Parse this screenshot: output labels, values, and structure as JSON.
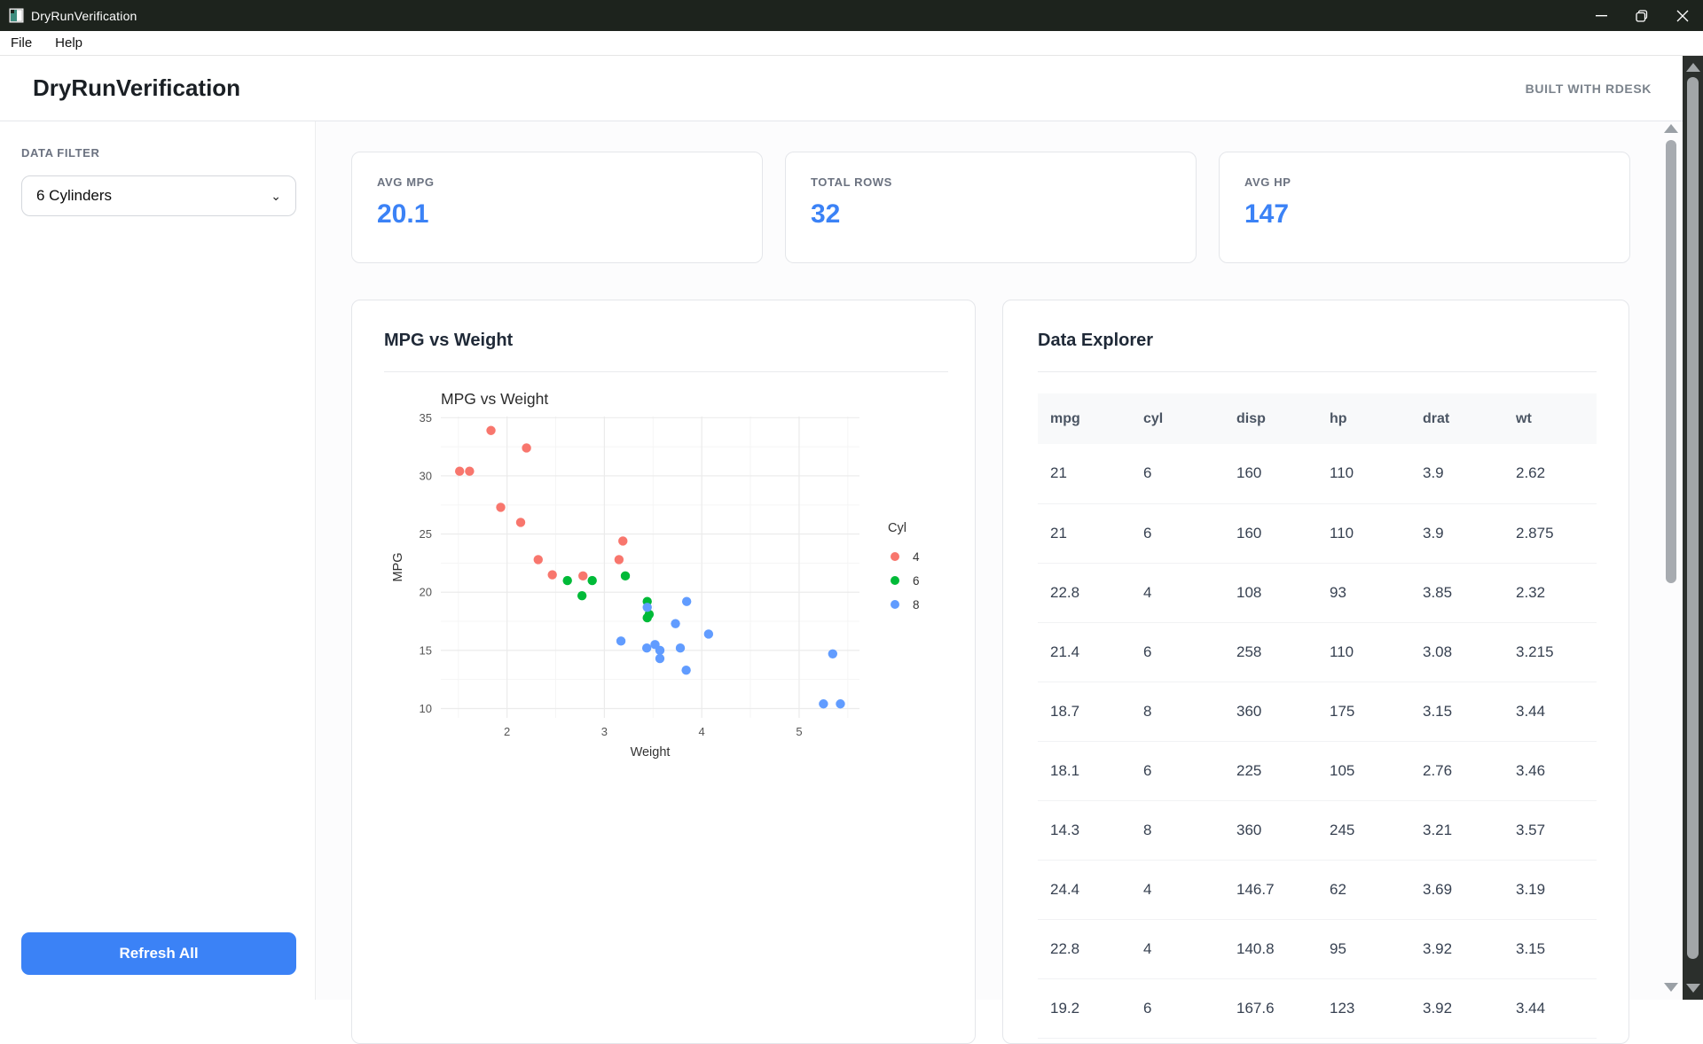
{
  "window": {
    "title": "DryRunVerification"
  },
  "menu": {
    "items": [
      "File",
      "Help"
    ]
  },
  "header": {
    "title": "DryRunVerification",
    "badge": "BUILT WITH RDESK"
  },
  "sidebar": {
    "filter_label": "DATA FILTER",
    "filter_value": "6 Cylinders",
    "refresh_label": "Refresh All"
  },
  "stats": [
    {
      "label": "AVG MPG",
      "value": "20.1"
    },
    {
      "label": "TOTAL ROWS",
      "value": "32"
    },
    {
      "label": "AVG HP",
      "value": "147"
    }
  ],
  "chart_card": {
    "title": "MPG vs Weight"
  },
  "chart_data": {
    "type": "scatter",
    "title": "MPG vs Weight",
    "xlabel": "Weight",
    "ylabel": "MPG",
    "xlim": [
      1.32,
      5.62
    ],
    "ylim": [
      9.2,
      35.1
    ],
    "xticks": [
      2,
      3,
      4,
      5
    ],
    "xticks_minor": [
      1.5,
      2.5,
      3.5,
      4.5,
      5.5
    ],
    "yticks": [
      10,
      15,
      20,
      25,
      30,
      35
    ],
    "yticks_minor": [
      12.5,
      17.5,
      22.5,
      27.5,
      32.5
    ],
    "grid": true,
    "legend": {
      "title": "Cyl",
      "position": "right"
    },
    "series": [
      {
        "name": "4",
        "color": "#F8766D",
        "points": [
          [
            2.32,
            22.8
          ],
          [
            3.19,
            24.4
          ],
          [
            3.15,
            22.8
          ],
          [
            2.2,
            32.4
          ],
          [
            1.615,
            30.4
          ],
          [
            1.835,
            33.9
          ],
          [
            2.465,
            21.5
          ],
          [
            1.935,
            27.3
          ],
          [
            2.14,
            26
          ],
          [
            1.513,
            30.4
          ],
          [
            2.78,
            21.4
          ]
        ]
      },
      {
        "name": "6",
        "color": "#00BA38",
        "points": [
          [
            2.62,
            21
          ],
          [
            2.875,
            21
          ],
          [
            3.215,
            21.4
          ],
          [
            3.46,
            18.1
          ],
          [
            3.44,
            19.2
          ],
          [
            3.44,
            17.8
          ],
          [
            2.77,
            19.7
          ]
        ]
      },
      {
        "name": "8",
        "color": "#619CFF",
        "points": [
          [
            3.44,
            18.7
          ],
          [
            3.57,
            14.3
          ],
          [
            4.07,
            16.4
          ],
          [
            3.73,
            17.3
          ],
          [
            3.78,
            15.2
          ],
          [
            5.25,
            10.4
          ],
          [
            5.424,
            10.4
          ],
          [
            5.345,
            14.7
          ],
          [
            3.52,
            15.5
          ],
          [
            3.435,
            15.2
          ],
          [
            3.84,
            13.3
          ],
          [
            3.845,
            19.2
          ],
          [
            3.17,
            15.8
          ],
          [
            3.57,
            15
          ]
        ]
      }
    ]
  },
  "table_card": {
    "title": "Data Explorer",
    "columns": [
      "mpg",
      "cyl",
      "disp",
      "hp",
      "drat",
      "wt"
    ],
    "rows": [
      [
        "21",
        "6",
        "160",
        "110",
        "3.9",
        "2.62"
      ],
      [
        "21",
        "6",
        "160",
        "110",
        "3.9",
        "2.875"
      ],
      [
        "22.8",
        "4",
        "108",
        "93",
        "3.85",
        "2.32"
      ],
      [
        "21.4",
        "6",
        "258",
        "110",
        "3.08",
        "3.215"
      ],
      [
        "18.7",
        "8",
        "360",
        "175",
        "3.15",
        "3.44"
      ],
      [
        "18.1",
        "6",
        "225",
        "105",
        "2.76",
        "3.46"
      ],
      [
        "14.3",
        "8",
        "360",
        "245",
        "3.21",
        "3.57"
      ],
      [
        "24.4",
        "4",
        "146.7",
        "62",
        "3.69",
        "3.19"
      ],
      [
        "22.8",
        "4",
        "140.8",
        "95",
        "3.92",
        "3.15"
      ],
      [
        "19.2",
        "6",
        "167.6",
        "123",
        "3.92",
        "3.44"
      ]
    ]
  },
  "colors": {
    "accent": "#3b82f6",
    "titlebar": "#1d231d",
    "cyl4": "#F8766D",
    "cyl6": "#00BA38",
    "cyl8": "#619CFF"
  }
}
